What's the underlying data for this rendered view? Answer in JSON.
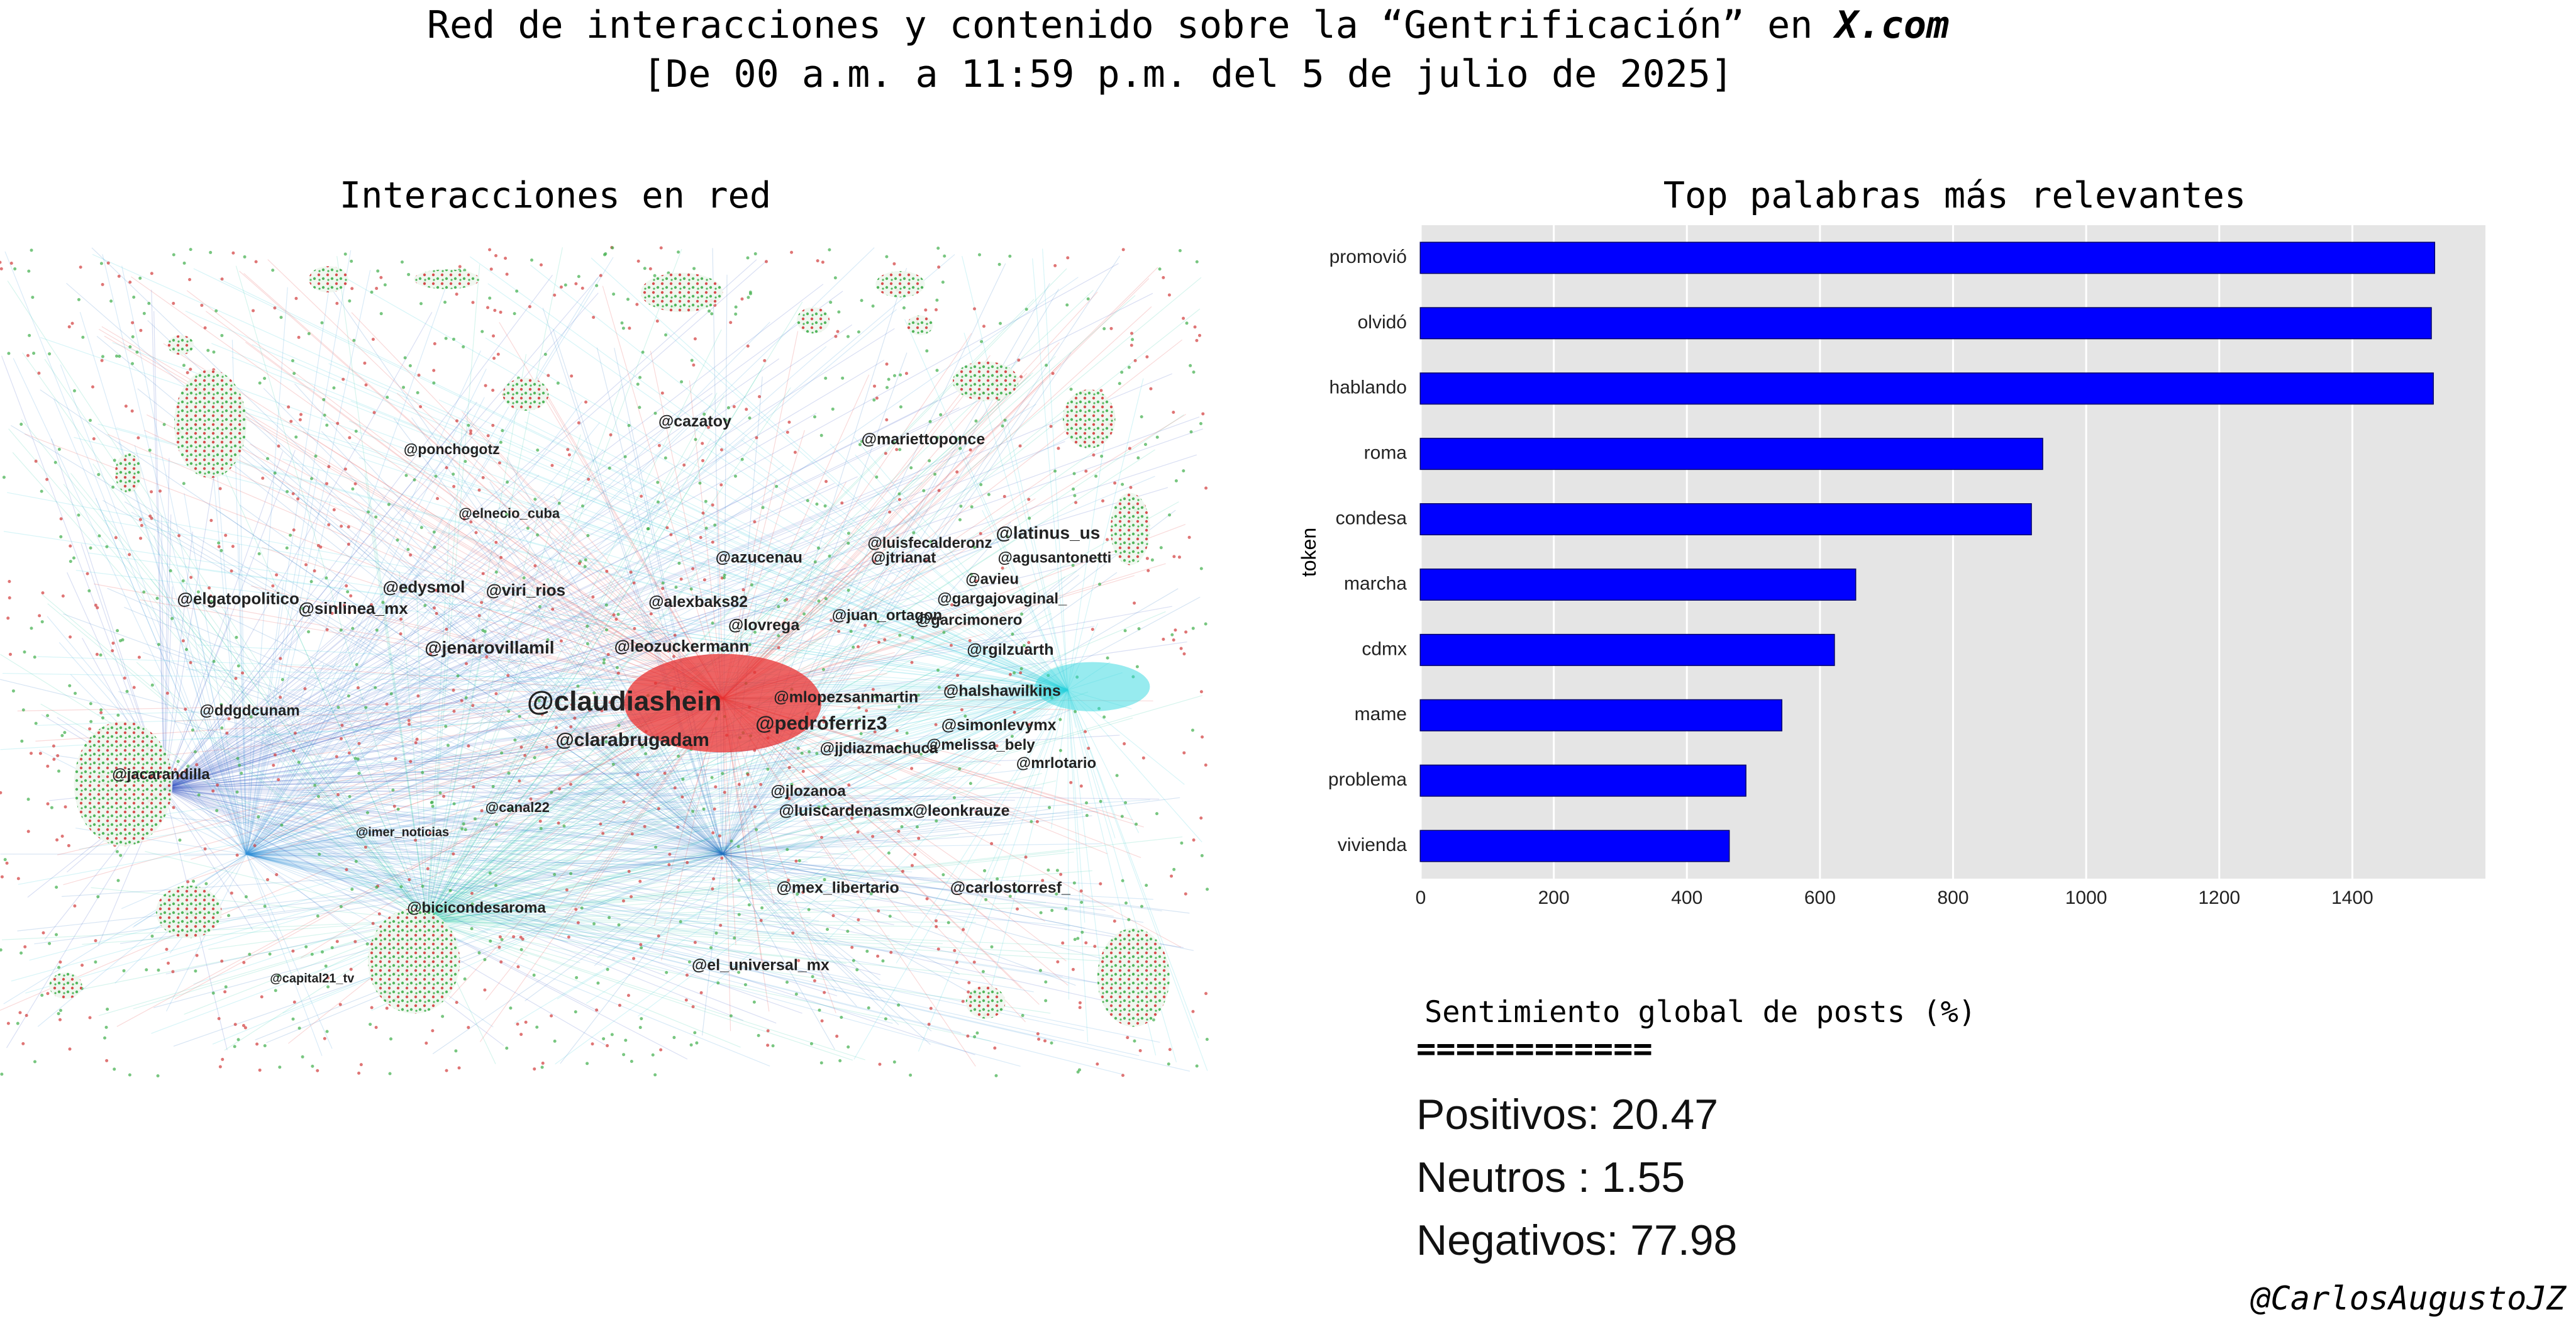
{
  "title": "Red de interacciones y contenido sobre la “Gentrificación” en",
  "title_emph": "X.com",
  "subtitle": "[De 00 a.m. a 11:59 p.m. del 5 de julio de 2025]",
  "network": {
    "title": "Interacciones en red",
    "labels": [
      "@claudiashein",
      "@pedroferriz3",
      "@clarabrugadam",
      "@jenarovillamil",
      "@leozuckermann",
      "@alexbaks82",
      "@lovrega",
      "@azucenau",
      "@cazatoy",
      "@mariettoponce",
      "@ponchogotz",
      "@elnecio_cuba",
      "@edysmol",
      "@viri_rios",
      "@elgatopolitico",
      "@sinlinea_mx",
      "@latinus_us",
      "@agusantonetti",
      "@jtrianat",
      "@luisfecalderonz",
      "@avieu",
      "@gargajovaginal_",
      "@garcimonero",
      "@juan_ortagon",
      "@rgilzuarth",
      "@ddgdcunam",
      "@jacarandilla",
      "@simonlevymx",
      "@halshawilkins",
      "@mlopezsanmartin",
      "@jjdiazmachuca",
      "@melissa_bely",
      "@mrlotario",
      "@jlozanoa",
      "@luiscardenasmx",
      "@leonkrauze",
      "@mex_libertario",
      "@carlostorresf_",
      "@bicicondesaroma",
      "@el_universal_mx",
      "@canal22",
      "@capital21_tv",
      "@imer_noticias"
    ]
  },
  "chart_data": {
    "type": "bar",
    "orientation": "horizontal",
    "title": "Top palabras más relevantes",
    "ylabel": "token",
    "categories": [
      "promovió",
      "olvidó",
      "hablando",
      "roma",
      "condesa",
      "marcha",
      "cdmx",
      "mame",
      "problema",
      "vivienda"
    ],
    "values": [
      1523,
      1518,
      1521,
      934,
      917,
      653,
      621,
      542,
      488,
      463
    ],
    "color": "#0000ff",
    "xlim": [
      0,
      1600
    ],
    "xticks": [
      0,
      200,
      400,
      600,
      800,
      1000,
      1200,
      1400
    ],
    "grid": true
  },
  "sentiment": {
    "title": "Sentimiento global de posts (%)",
    "separator": "============",
    "rows": [
      {
        "label": "Positivos:",
        "value": 20.47
      },
      {
        "label": "Neutros :",
        "value": 1.55
      },
      {
        "label": "Negativos:",
        "value": 77.98
      }
    ]
  },
  "signature": "@CarlosAugustoJZ"
}
